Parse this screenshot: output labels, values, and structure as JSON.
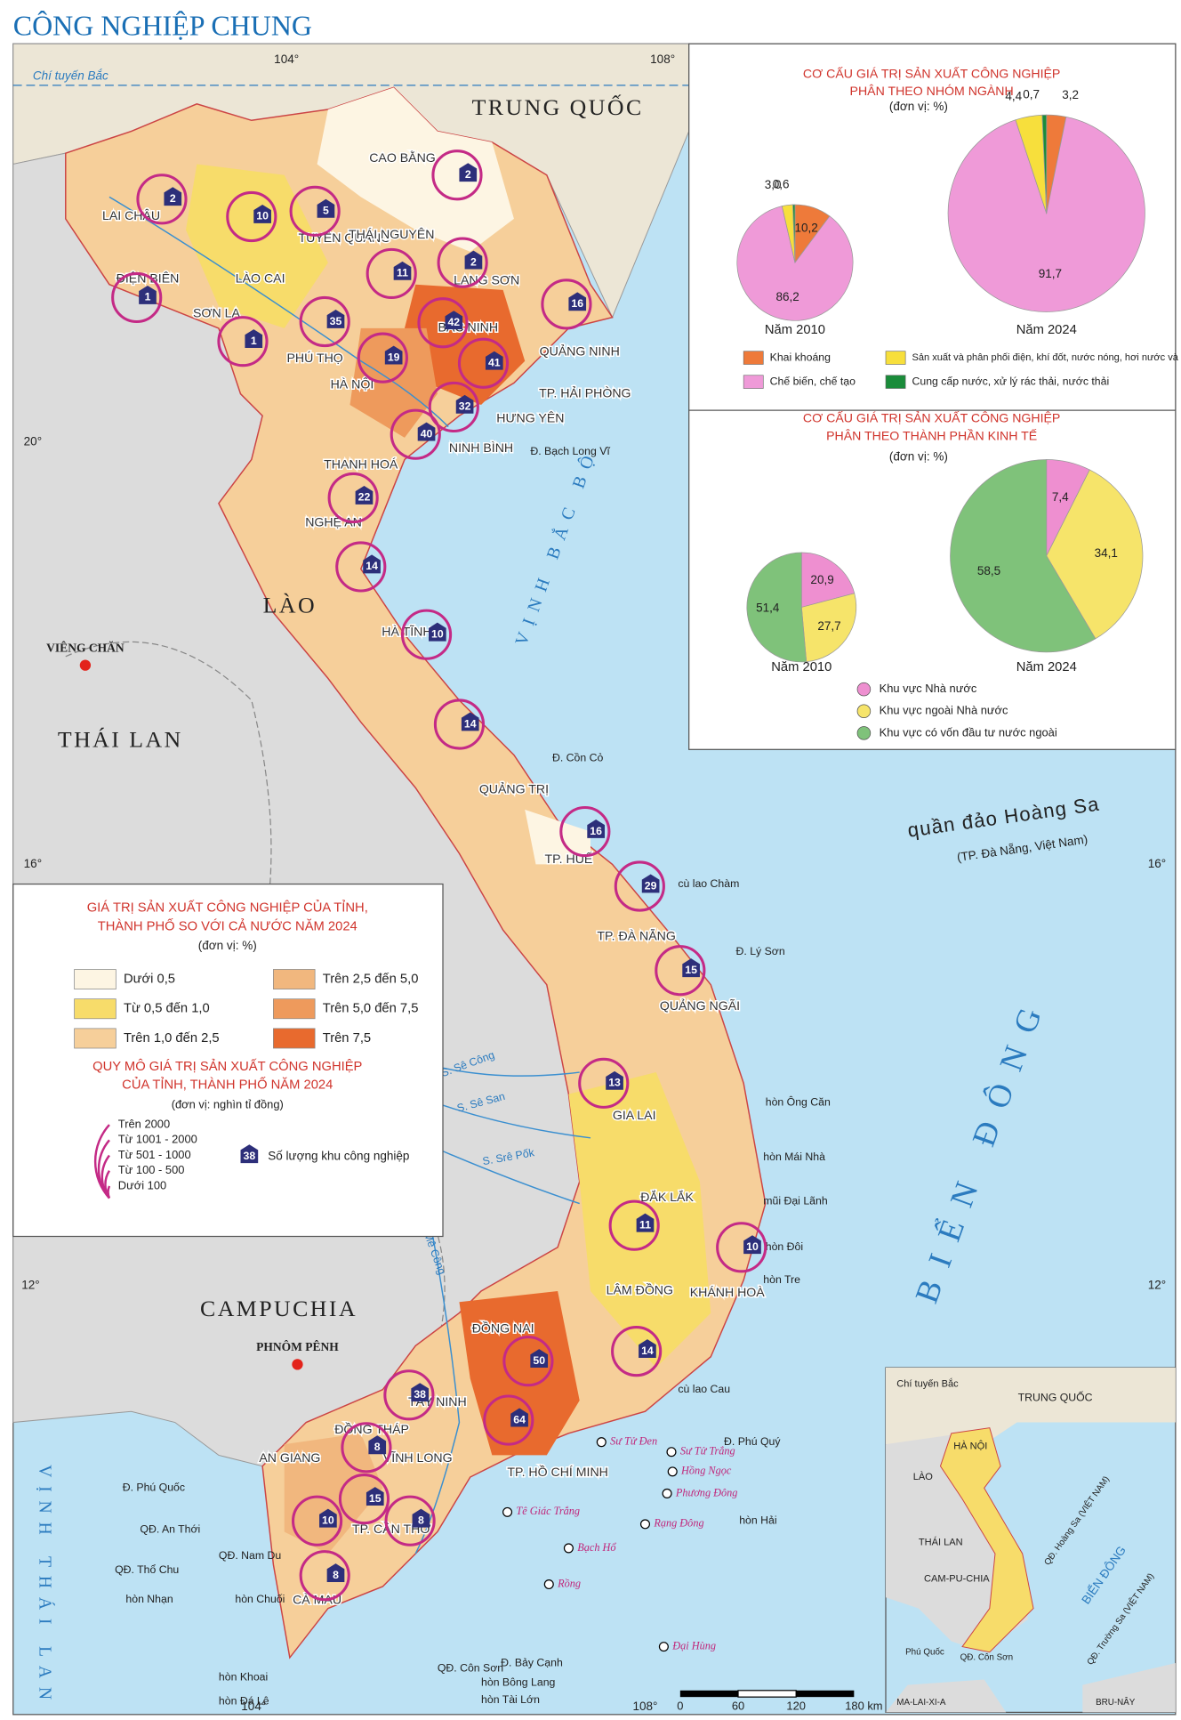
{
  "title": "CÔNG NGHIỆP CHUNG",
  "chart_data": [
    {
      "type": "pie",
      "title_lines": [
        "CƠ CẤU GIÁ TRỊ SẢN XUẤT CÔNG NGHIỆP",
        "PHÂN THEO NHÓM NGÀNH"
      ],
      "unit": "(đơn vị: %)",
      "categories": [
        "Khai khoáng",
        "Chế biến, chế tạo",
        "Sản xuất và phân phối điện, khí đốt, nước nóng, hơi nước và điều hoà không khí",
        "Cung cấp nước, xử lý rác thải, nước thải"
      ],
      "colors": [
        "#ee7a3a",
        "#ef9ad8",
        "#f7df3c",
        "#1a8c3a"
      ],
      "pies": [
        {
          "label": "Năm 2010",
          "values": [
            10.2,
            86.2,
            3.0,
            0.6
          ],
          "value_labels": [
            "10,2",
            "86,2",
            "3,0",
            "0,6"
          ]
        },
        {
          "label": "Năm 2024",
          "values": [
            3.2,
            91.7,
            4.4,
            0.7
          ],
          "value_labels": [
            "3,2",
            "91,7",
            "4,4",
            "0,7"
          ]
        }
      ]
    },
    {
      "type": "pie",
      "title_lines": [
        "CƠ CẤU GIÁ TRỊ SẢN XUẤT CÔNG NGHIỆP",
        "PHÂN THEO THÀNH PHẦN KINH TẾ"
      ],
      "unit": "(đơn vị: %)",
      "categories": [
        "Khu vực Nhà nước",
        "Khu vực ngoài Nhà nước",
        "Khu vực có vốn đầu tư nước ngoài"
      ],
      "colors": [
        "#ee8fd0",
        "#f6e46a",
        "#7fc27a"
      ],
      "pies": [
        {
          "label": "Năm 2010",
          "values": [
            20.9,
            27.7,
            51.4
          ],
          "value_labels": [
            "20,9",
            "27,7",
            "51,4"
          ]
        },
        {
          "label": "Năm 2024",
          "values": [
            7.4,
            34.1,
            58.5
          ],
          "value_labels": [
            "7,4",
            "34,1",
            "58,5"
          ]
        }
      ]
    }
  ],
  "legend": {
    "title_lines": [
      "GIÁ TRỊ SẢN XUẤT CÔNG NGHIỆP CỦA TỈNH,",
      "THÀNH PHỐ SO VỚI CẢ NƯỚC NĂM 2024"
    ],
    "unit": "(đơn vị: %)",
    "classes": [
      "Dưới 0,5",
      "Từ 0,5 đến 1,0",
      "Trên 1,0 đến 2,5",
      "Trên 2,5 đến 5,0",
      "Trên 5,0 đến 7,5",
      "Trên 7,5"
    ],
    "class_colors": [
      "#fdf5e3",
      "#f7dc6a",
      "#f6cf9a",
      "#f1b77e",
      "#ee9a5c",
      "#e86a2e"
    ],
    "scale_title_lines": [
      "QUY MÔ GIÁ TRỊ SẢN XUẤT CÔNG NGHIỆP",
      "CỦA TỈNH, THÀNH PHỐ NĂM 2024"
    ],
    "scale_unit": "(đơn vị: nghìn tỉ đồng)",
    "scale_classes": [
      "Trên 2000",
      "Từ 1001 - 2000",
      "Từ 501 - 1000",
      "Từ 100 - 500",
      "Dưới 100"
    ],
    "zone_sample": "38",
    "zone_label": "Số lượng khu công nghiệp"
  },
  "map": {
    "countries": [
      "TRUNG QUỐC",
      "LÀO",
      "THÁI LAN",
      "CAMPUCHIA"
    ],
    "capitals": [
      "VIÊNG CHĂN",
      "PHNÔM PÊNH"
    ],
    "provinces": [
      "LAI CHÂU",
      "LÀO CAI",
      "ĐIỆN BIÊN",
      "SƠN LA",
      "CAO BẰNG",
      "TUYÊN QUANG",
      "THÁI NGUYÊN",
      "LẠNG SƠN",
      "PHÚ THỌ",
      "BẮC NINH",
      "HÀ NỘI",
      "QUẢNG NINH",
      "TP. HẢI PHÒNG",
      "HƯNG YÊN",
      "NINH BÌNH",
      "THANH HOÁ",
      "NGHỆ AN",
      "HÀ TĨNH",
      "QUẢNG TRỊ",
      "TP. HUẾ",
      "TP. ĐÀ NẴNG",
      "QUẢNG NGÃI",
      "GIA LAI",
      "ĐẮK LẮK",
      "LÂM ĐỒNG",
      "KHÁNH HOÀ",
      "ĐỒNG NAI",
      "TÂY NINH",
      "ĐỒNG THÁP",
      "AN GIANG",
      "VĨNH LONG",
      "TP. CẦN THƠ",
      "CÀ MAU",
      "TP. HỒ CHÍ MINH"
    ],
    "islands": [
      "Đ. Bạch Long Vĩ",
      "Đ. Cồn Cỏ",
      "cù lao Chàm",
      "Đ. Lý Sơn",
      "hòn Ông Căn",
      "hòn Mái Nhà",
      "mũi Đại Lãnh",
      "hòn Đôi",
      "hòn Tre",
      "cù lao Cau",
      "Đ. Phú Quý",
      "hòn Hải",
      "Đ. Phú Quốc",
      "QĐ. An Thới",
      "QĐ. Thổ Chu",
      "hòn Nhạn",
      "QĐ. Nam Du",
      "hòn Chuối",
      "QĐ. Côn Sơn",
      "Đ. Bảy Cạnh",
      "hòn Bông Lang",
      "hòn Tài Lớn",
      "hòn Khoai",
      "hòn Đá Lê"
    ],
    "oil_fields": [
      "Sư Tử Đen",
      "Sư Tử Trắng",
      "Hồng Ngọc",
      "Phương Đông",
      "Tê Giác Trắng",
      "Rạng Đông",
      "Bạch Hổ",
      "Rồng",
      "Đại Hùng"
    ],
    "seas": [
      "VỊNH BẮC BỘ",
      "BIỂN ĐÔNG",
      "VỊNH THÁI LAN"
    ],
    "archipelago": [
      "quần đảo Hoàng Sa",
      "(TP. Đà Nẵng, Việt Nam)"
    ],
    "rivers": [
      "S. Sê Công",
      "S. Sê San",
      "S. Srê Pốk",
      "S. Mê Công"
    ],
    "tropic": "Chí tuyến Bắc",
    "coordinates": [
      "104°",
      "108°",
      "20°",
      "16°",
      "12°",
      "104°",
      "108°",
      "16°",
      "12°"
    ],
    "industrial_zones": [
      2,
      10,
      5,
      2,
      11,
      2,
      1,
      1,
      35,
      19,
      42,
      16,
      41,
      32,
      40,
      22,
      14,
      10,
      14,
      16,
      29,
      15,
      13,
      11,
      10,
      14,
      50,
      64,
      38,
      8,
      15,
      10,
      8,
      8
    ]
  },
  "scale_bar": [
    "0",
    "60",
    "120",
    "180 km"
  ],
  "inset": [
    "Chí tuyến Bắc",
    "TRUNG QUỐC",
    "HÀ NỘI",
    "LÀO",
    "THÁI LAN",
    "CAM-PU-CHIA",
    "BIỂN ĐÔNG",
    "QĐ. Hoàng Sa (VIỆT NAM)",
    "QĐ. Trường Sa (VIỆT NAM)",
    "Phú Quốc",
    "QĐ. Côn Sơn",
    "MA-LAI-XI-A",
    "BRU-NÂY"
  ]
}
